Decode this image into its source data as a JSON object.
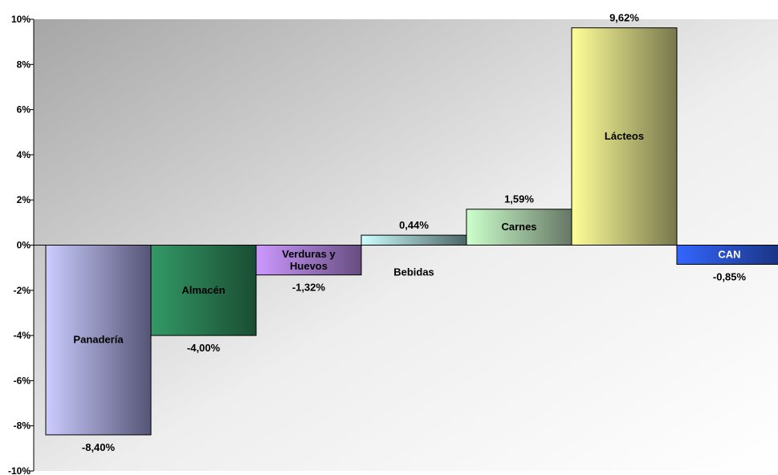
{
  "chart_data": {
    "type": "bar",
    "categories": [
      "Panadería",
      "Almacén",
      "Verduras y Huevos",
      "Bebidas",
      "Carnes",
      "Lácteos",
      "CAN"
    ],
    "category_lines": [
      [
        "Panadería"
      ],
      [
        "Almacén"
      ],
      [
        "Verduras y",
        "Huevos"
      ],
      [
        "Bebidas"
      ],
      [
        "Carnes"
      ],
      [
        "Lácteos"
      ],
      [
        "CAN"
      ]
    ],
    "values": [
      -8.4,
      -4.0,
      -1.32,
      0.44,
      1.59,
      9.62,
      -0.85
    ],
    "value_labels": [
      "-8,40%",
      "-4,00%",
      "-1,32%",
      "0,44%",
      "1,59%",
      "9,62%",
      "-0,85%"
    ],
    "ylim": [
      -10,
      10
    ],
    "yticks": [
      10,
      8,
      6,
      4,
      2,
      0,
      -2,
      -4,
      -6,
      -8,
      -10
    ],
    "ytick_labels": [
      "10%",
      "8%",
      "6%",
      "4%",
      "2%",
      "0%",
      "-2%",
      "-4%",
      "-6%",
      "-8%",
      "-10%"
    ],
    "grid": false,
    "legend": "none",
    "colors": [
      {
        "light": "#ccccff",
        "dark": "#555577"
      },
      {
        "light": "#339966",
        "dark": "#1a4d33"
      },
      {
        "light": "#cc99ff",
        "dark": "#664d80"
      },
      {
        "light": "#ccffff",
        "dark": "#4d6666"
      },
      {
        "light": "#ccffcc",
        "dark": "#667766"
      },
      {
        "light": "#ffff99",
        "dark": "#77774d"
      },
      {
        "light": "#3366ff",
        "dark": "#1a3380"
      }
    ],
    "label_colors": [
      "#000000",
      "#000000",
      "#000000",
      "#000000",
      "#000000",
      "#000000",
      "#ffffff"
    ],
    "plot_background": {
      "from": "#a6a6a6",
      "to": "#ffffff"
    }
  }
}
